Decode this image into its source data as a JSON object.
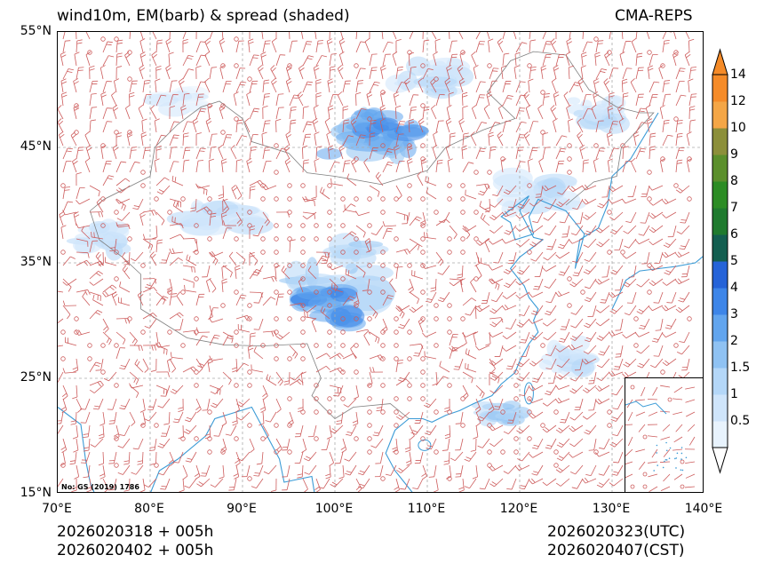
{
  "header": {
    "title_left": "wind10m, EM(barb) & spread (shaded)",
    "title_right": "CMA-REPS"
  },
  "axes": {
    "lat_labels": [
      "55°N",
      "45°N",
      "35°N",
      "25°N",
      "15°N"
    ],
    "lon_labels": [
      "70°E",
      "80°E",
      "90°E",
      "100°E",
      "110°E",
      "120°E",
      "130°E",
      "140°E"
    ]
  },
  "colorbar": {
    "ticks": [
      "14",
      "12",
      "10",
      "9",
      "8",
      "7",
      "6",
      "5",
      "4",
      "3",
      "2",
      "1.5",
      "1",
      "0.5"
    ],
    "colors": [
      "#e8f3fd",
      "#cfe5fb",
      "#b4d7f8",
      "#8fc2f3",
      "#62a5ee",
      "#3d85e8",
      "#2563d8",
      "#135e50",
      "#1f7a2e",
      "#2c8c24",
      "#5b8f2c",
      "#8c8f3a",
      "#f4a646",
      "#f58b28"
    ],
    "outline_color": "#000000"
  },
  "map": {
    "barb_color": "#cd5c5c",
    "coast_color": "#3b9bd6",
    "border_color": "#808080",
    "grid_color": "#aaaaaa",
    "approval_number": "No: GS (2019) 1786"
  },
  "footer": {
    "init_utc": "2026020318  +  005h",
    "init_cst": "2026020402  +  005h",
    "valid_utc": "2026020323(UTC)",
    "valid_cst": "2026020407(CST)"
  }
}
